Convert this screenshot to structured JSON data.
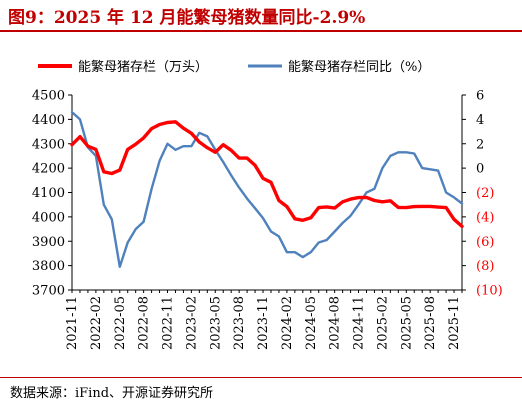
{
  "title": "图9：2025 年 12 月能繁母猪数量同比-2.9%",
  "source": "数据来源：iFind、开源证券研究所",
  "chart_data": {
    "type": "line",
    "legend_placement": "top",
    "grid": false,
    "x": [
      "2021-11",
      "2021-12",
      "2022-01",
      "2022-02",
      "2022-03",
      "2022-04",
      "2022-05",
      "2022-06",
      "2022-07",
      "2022-08",
      "2022-09",
      "2022-10",
      "2022-11",
      "2022-12",
      "2023-01",
      "2023-02",
      "2023-03",
      "2023-04",
      "2023-05",
      "2023-06",
      "2023-07",
      "2023-08",
      "2023-09",
      "2023-10",
      "2023-11",
      "2023-12",
      "2024-01",
      "2024-02",
      "2024-03",
      "2024-04",
      "2024-05",
      "2024-06",
      "2024-07",
      "2024-08",
      "2024-09",
      "2024-10",
      "2024-11",
      "2024-12",
      "2025-01",
      "2025-02",
      "2025-03",
      "2025-04",
      "2025-05",
      "2025-06",
      "2025-07",
      "2025-08",
      "2025-09",
      "2025-10",
      "2025-11",
      "2025-12"
    ],
    "x_tick_labels": [
      "2021-11",
      "2022-02",
      "2022-05",
      "2022-08",
      "2022-11",
      "2023-02",
      "2023-05",
      "2023-08",
      "2023-11",
      "2024-02",
      "2024-05",
      "2024-08",
      "2024-11",
      "2025-02",
      "2025-05",
      "2025-08",
      "2025-11"
    ],
    "y_left": {
      "ylim": [
        3700,
        4500
      ],
      "ticks": [
        "3700",
        "3800",
        "3900",
        "4000",
        "4100",
        "4200",
        "4300",
        "4400",
        "4500"
      ]
    },
    "y_right": {
      "ylim": [
        -10,
        6
      ],
      "ticks": [
        "6",
        "4",
        "2",
        "0",
        "(2)",
        "(4)",
        "(6)",
        "(8)",
        "(10)"
      ]
    },
    "series": [
      {
        "name": "能繁母猪存栏（万头）",
        "axis": "left",
        "color": "#ff0000",
        "values": [
          4296,
          4329,
          4290,
          4277,
          4185,
          4178,
          4192,
          4277,
          4298,
          4324,
          4362,
          4379,
          4387,
          4390,
          4364,
          4343,
          4307,
          4284,
          4265,
          4296,
          4273,
          4241,
          4241,
          4211,
          4158,
          4142,
          4067,
          4042,
          3992,
          3986,
          3996,
          4038,
          4041,
          4036,
          4062,
          4073,
          4079,
          4080,
          4067,
          4062,
          4066,
          4039,
          4038,
          4042,
          4043,
          4043,
          4040,
          4038,
          3990,
          3961
        ]
      },
      {
        "name": "能繁母猪存栏同比（%）",
        "axis": "right",
        "color": "#4f81bd",
        "values": [
          4.6,
          4.0,
          1.7,
          1.0,
          -3.0,
          -4.2,
          -8.1,
          -6.1,
          -5.0,
          -4.4,
          -1.7,
          0.6,
          2.0,
          1.5,
          1.8,
          1.8,
          2.9,
          2.6,
          1.5,
          0.5,
          -0.6,
          -1.6,
          -2.5,
          -3.3,
          -4.1,
          -5.2,
          -5.6,
          -6.9,
          -6.9,
          -7.3,
          -6.9,
          -6.1,
          -5.9,
          -5.2,
          -4.5,
          -3.9,
          -3.0,
          -2.0,
          -1.7,
          0.0,
          1.0,
          1.3,
          1.3,
          1.2,
          0.0,
          -0.1,
          -0.2,
          -2.0,
          -2.4,
          -2.9
        ]
      }
    ]
  }
}
